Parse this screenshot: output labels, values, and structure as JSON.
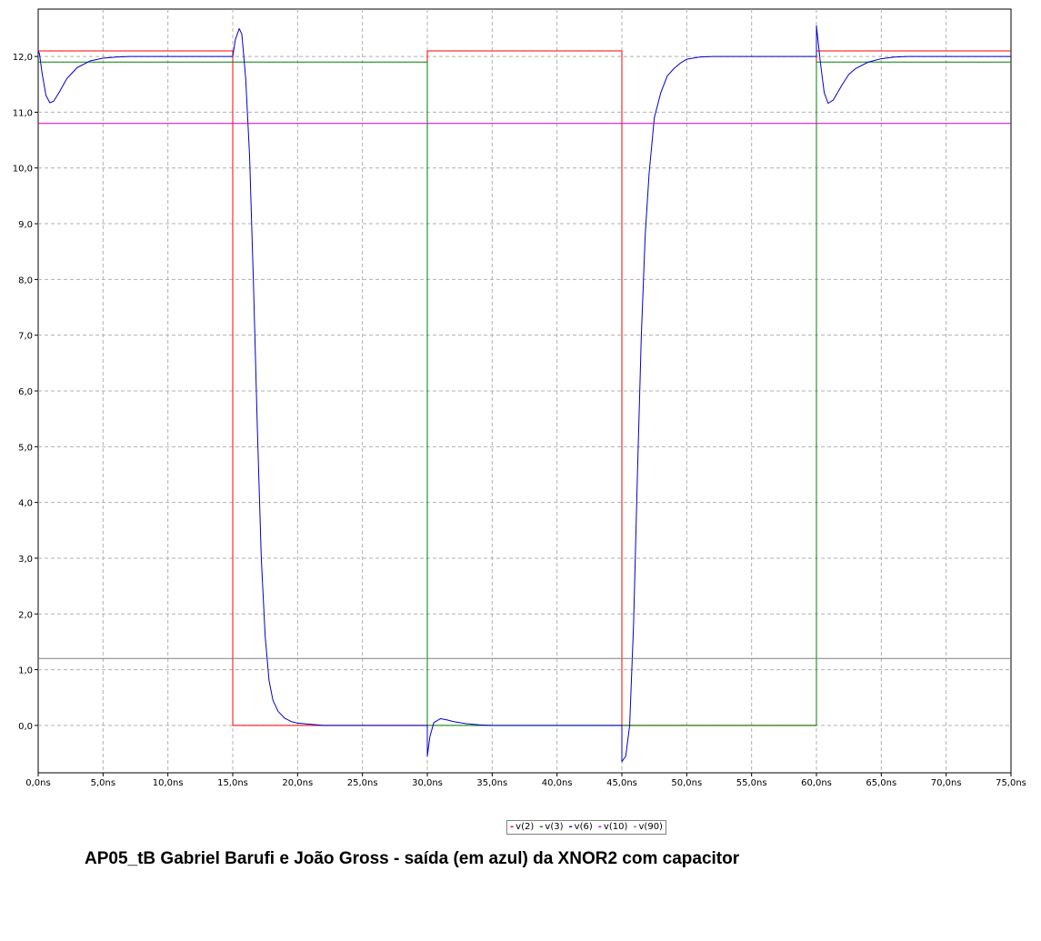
{
  "chart_data": {
    "type": "line",
    "caption": "AP05_tB Gabriel Barufi e João Gross - saída (em azul) da XNOR2 com capacitor",
    "xlim": [
      0,
      75
    ],
    "ylim": [
      -0.85,
      12.85
    ],
    "x_ticks": [
      0,
      5,
      10,
      15,
      20,
      25,
      30,
      35,
      40,
      45,
      50,
      55,
      60,
      65,
      70,
      75
    ],
    "x_tick_labels": [
      "0,0ns",
      "5,0ns",
      "10,0ns",
      "15,0ns",
      "20,0ns",
      "25,0ns",
      "30,0ns",
      "35,0ns",
      "40,0ns",
      "45,0ns",
      "50,0ns",
      "55,0ns",
      "60,0ns",
      "65,0ns",
      "70,0ns",
      "75,0ns"
    ],
    "y_ticks": [
      0,
      1,
      2,
      3,
      4,
      5,
      6,
      7,
      8,
      9,
      10,
      11,
      12
    ],
    "y_tick_labels": [
      "0,0",
      "1,0",
      "2,0",
      "3,0",
      "4,0",
      "5,0",
      "6,0",
      "7,0",
      "8,0",
      "9,0",
      "10,0",
      "11,0",
      "12,0"
    ],
    "grid": true,
    "legend_position": "bottom-center",
    "series": [
      {
        "name": "v(2)",
        "color": "#ff0000",
        "points": [
          [
            0,
            12.1
          ],
          [
            15,
            12.1
          ],
          [
            15,
            0
          ],
          [
            30,
            0
          ],
          [
            30,
            12.1
          ],
          [
            45,
            12.1
          ],
          [
            45,
            0
          ],
          [
            60,
            0
          ],
          [
            60,
            12.1
          ],
          [
            75,
            12.1
          ]
        ]
      },
      {
        "name": "v(3)",
        "color": "#008000",
        "points": [
          [
            0,
            11.9
          ],
          [
            30,
            11.9
          ],
          [
            30,
            0
          ],
          [
            60,
            0
          ],
          [
            60,
            11.9
          ],
          [
            75,
            11.9
          ]
        ]
      },
      {
        "name": "v(6)",
        "color": "#0000cc",
        "points": [
          [
            0,
            12.1
          ],
          [
            0.1,
            12.05
          ],
          [
            0.3,
            11.7
          ],
          [
            0.6,
            11.3
          ],
          [
            0.9,
            11.17
          ],
          [
            1.2,
            11.2
          ],
          [
            1.6,
            11.35
          ],
          [
            2.2,
            11.6
          ],
          [
            3,
            11.8
          ],
          [
            4,
            11.92
          ],
          [
            5,
            11.97
          ],
          [
            6,
            11.99
          ],
          [
            7,
            12
          ],
          [
            15,
            12
          ],
          [
            15.2,
            12.3
          ],
          [
            15.5,
            12.5
          ],
          [
            15.7,
            12.4
          ],
          [
            16,
            11.6
          ],
          [
            16.3,
            10.2
          ],
          [
            16.6,
            7.9
          ],
          [
            16.9,
            5.3
          ],
          [
            17.2,
            3.0
          ],
          [
            17.5,
            1.6
          ],
          [
            17.8,
            0.8
          ],
          [
            18.1,
            0.45
          ],
          [
            18.5,
            0.25
          ],
          [
            19,
            0.13
          ],
          [
            19.5,
            0.07
          ],
          [
            20,
            0.04
          ],
          [
            21,
            0.02
          ],
          [
            22,
            0
          ],
          [
            30,
            0
          ],
          [
            30,
            -0.55
          ],
          [
            30.2,
            -0.2
          ],
          [
            30.5,
            0.05
          ],
          [
            31,
            0.12
          ],
          [
            31.5,
            0.1
          ],
          [
            32,
            0.07
          ],
          [
            33,
            0.03
          ],
          [
            34,
            0.01
          ],
          [
            35,
            0
          ],
          [
            45,
            0
          ],
          [
            45,
            -0.65
          ],
          [
            45.3,
            -0.55
          ],
          [
            45.6,
            0
          ],
          [
            45.9,
            1.8
          ],
          [
            46.2,
            4.5
          ],
          [
            46.5,
            7.0
          ],
          [
            46.8,
            8.8
          ],
          [
            47.1,
            9.9
          ],
          [
            47.5,
            10.9
          ],
          [
            48,
            11.35
          ],
          [
            48.5,
            11.65
          ],
          [
            49,
            11.78
          ],
          [
            49.5,
            11.88
          ],
          [
            50,
            11.95
          ],
          [
            51,
            11.99
          ],
          [
            52,
            12
          ],
          [
            60,
            12
          ],
          [
            60,
            12.55
          ],
          [
            60.3,
            11.9
          ],
          [
            60.6,
            11.35
          ],
          [
            60.9,
            11.16
          ],
          [
            61.3,
            11.22
          ],
          [
            62,
            11.5
          ],
          [
            62.5,
            11.68
          ],
          [
            63,
            11.78
          ],
          [
            64,
            11.9
          ],
          [
            65,
            11.96
          ],
          [
            66,
            11.99
          ],
          [
            67,
            12
          ],
          [
            75,
            12
          ]
        ]
      },
      {
        "name": "v(10)",
        "color": "#cc00cc",
        "points": [
          [
            0,
            10.8
          ],
          [
            75,
            10.8
          ]
        ]
      },
      {
        "name": "v(90)",
        "color": "#808080",
        "points": [
          [
            0,
            1.2
          ],
          [
            75,
            1.2
          ]
        ]
      }
    ]
  }
}
